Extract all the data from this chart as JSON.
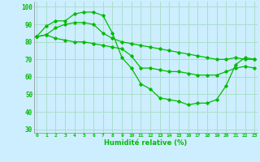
{
  "xlabel": "Humidité relative (%)",
  "background_color": "#cceeff",
  "grid_color": "#aaddcc",
  "line_color": "#00bb00",
  "ylim": [
    28,
    103
  ],
  "xlim": [
    -0.3,
    23.3
  ],
  "yticks": [
    30,
    40,
    50,
    60,
    70,
    80,
    90,
    100
  ],
  "xticks": [
    0,
    1,
    2,
    3,
    4,
    5,
    6,
    7,
    8,
    9,
    10,
    11,
    12,
    13,
    14,
    15,
    16,
    17,
    18,
    19,
    20,
    21,
    22,
    23
  ],
  "line1": [
    83,
    89,
    92,
    92,
    96,
    97,
    97,
    95,
    85,
    71,
    65,
    56,
    53,
    48,
    47,
    46,
    44,
    45,
    45,
    47,
    55,
    67,
    71,
    70
  ],
  "line2": [
    83,
    84,
    88,
    90,
    91,
    91,
    90,
    85,
    82,
    80,
    79,
    78,
    77,
    76,
    75,
    74,
    73,
    72,
    71,
    70,
    70,
    71,
    70,
    70
  ],
  "line3": [
    83,
    84,
    82,
    81,
    80,
    80,
    79,
    78,
    77,
    76,
    72,
    65,
    65,
    64,
    63,
    63,
    62,
    61,
    61,
    61,
    63,
    65,
    66,
    65
  ]
}
